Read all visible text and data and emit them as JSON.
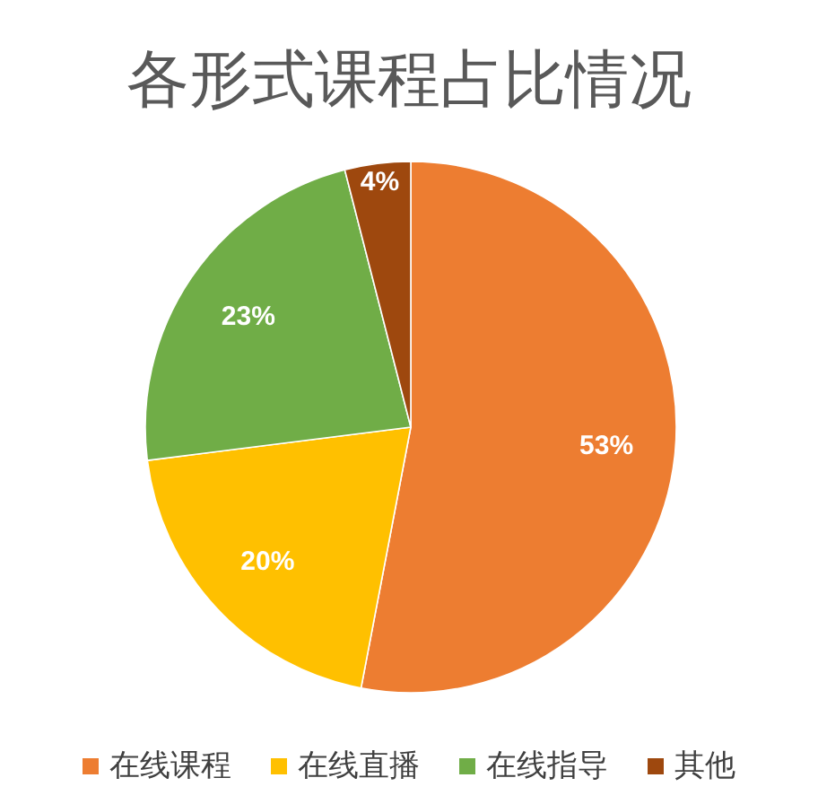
{
  "chart_data": {
    "type": "pie",
    "title": "各形式课程占比情况",
    "categories": [
      "在线课程",
      "在线直播",
      "在线指导",
      "其他"
    ],
    "values": [
      53,
      20,
      23,
      4
    ],
    "colors": [
      "#ed7d31",
      "#ffc000",
      "#70ad47",
      "#9e480e"
    ],
    "value_labels": [
      "53%",
      "20%",
      "23%",
      "4%"
    ],
    "legend": "bottom"
  }
}
